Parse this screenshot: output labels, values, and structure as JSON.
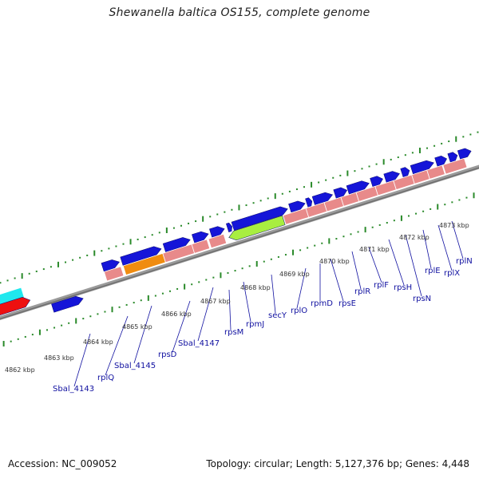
{
  "title": "Shewanella baltica OS155, complete genome",
  "footer": {
    "accession": "Accession: NC_009052",
    "stats": "Topology: circular; Length: 5,127,376 bp; Genes: 4,448"
  },
  "colors": {
    "backbone": "#8c8c8c",
    "cds_forward": "#1515d8",
    "cds_reverse_pink": "#e88a8a",
    "orange_feature": "#f08c10",
    "green_feature": "#a8ee40",
    "cyan_feature": "#20e8ee",
    "red_feature": "#ee1010",
    "tick": "#2a8a2a",
    "label": "#1010a0"
  },
  "kbp_labels": [
    "4862 kbp",
    "4863 kbp",
    "4864 kbp",
    "4865 kbp",
    "4866 kbp",
    "4867 kbp",
    "4868 kbp",
    "4869 kbp",
    "4870 kbp",
    "4871 kbp",
    "4872 kbp",
    "4873 kbp"
  ],
  "gene_labels": [
    "Sbal_4143",
    "rplQ",
    "Sbal_4145",
    "rpsD",
    "Sbal_4147",
    "rpsM",
    "rpmJ",
    "secY",
    "rplO",
    "rpmD",
    "rpsE",
    "rplR",
    "rplF",
    "rpsH",
    "rpsN",
    "rplE",
    "rplX",
    "rplN"
  ]
}
